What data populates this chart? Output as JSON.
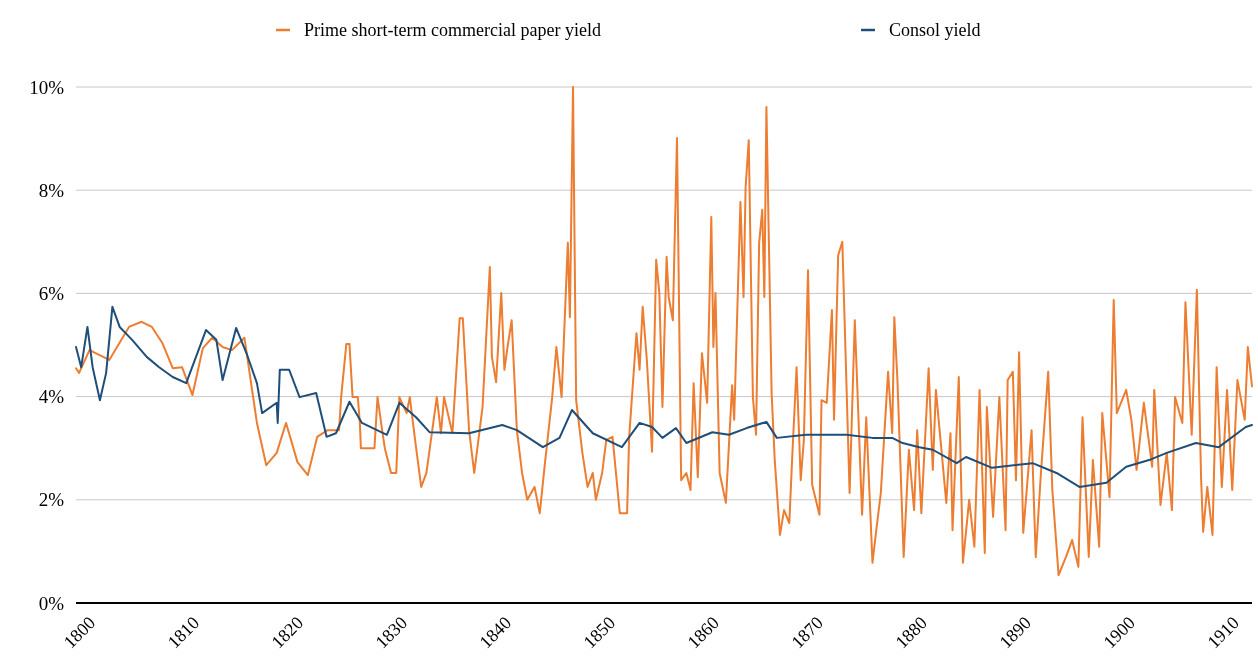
{
  "chart_data": {
    "type": "line",
    "legend": "top",
    "grid": "y",
    "line_style": "solid",
    "marker": "none",
    "xlim": [
      1798.9,
      1912
    ],
    "xticks": [
      1800,
      1810,
      1820,
      1830,
      1840,
      1850,
      1860,
      1870,
      1880,
      1890,
      1900,
      1910
    ],
    "ylim": [
      0,
      10
    ],
    "yticks": [
      {
        "value": 0,
        "label": "0%"
      },
      {
        "value": 2,
        "label": "2%"
      },
      {
        "value": 4,
        "label": "4%"
      },
      {
        "value": 6,
        "label": "6%"
      },
      {
        "value": 8,
        "label": "8%"
      },
      {
        "value": 10,
        "label": "10%"
      }
    ],
    "series": [
      {
        "name": "Prime short-term commercial paper yield",
        "color": "#ed7d31",
        "x": [
          1798.9,
          1799.2,
          1800.2,
          1802.1,
          1804,
          1805.2,
          1806.2,
          1807.2,
          1808.2,
          1809.1,
          1810.1,
          1811.1,
          1812,
          1813,
          1813.9,
          1815.1,
          1816.3,
          1817.2,
          1818.2,
          1819.1,
          1820.2,
          1821.2,
          1822.1,
          1823.1,
          1824.2,
          1824.4,
          1824.9,
          1825.2,
          1825.5,
          1826,
          1826.2,
          1826.3,
          1827.6,
          1827.9,
          1828.3,
          1828.6,
          1829.2,
          1829.7,
          1830,
          1830.7,
          1831,
          1831.6,
          1832.1,
          1832.6,
          1833.6,
          1834,
          1834.3,
          1835.1,
          1835.8,
          1836.1,
          1836.7,
          1837.2,
          1838,
          1838.7,
          1838.9,
          1839.3,
          1839.8,
          1840.1,
          1840.4,
          1840.8,
          1841.3,
          1841.8,
          1842.3,
          1843,
          1843.5,
          1844,
          1844.7,
          1845.1,
          1845.6,
          1846.2,
          1846.4,
          1846.7,
          1847,
          1847.6,
          1848.1,
          1848.6,
          1848.9,
          1849.5,
          1849.9,
          1850.5,
          1851.2,
          1851.9,
          1852.1,
          1852.8,
          1853.1,
          1853.4,
          1853.8,
          1854.3,
          1854.7,
          1855,
          1855.3,
          1855.7,
          1855.9,
          1856.3,
          1856.7,
          1857.1,
          1857.6,
          1858,
          1858.3,
          1858.7,
          1859.1,
          1859.6,
          1860,
          1860.2,
          1860.4,
          1860.8,
          1861.4,
          1862,
          1862.2,
          1862.8,
          1863.1,
          1863.3,
          1863.6,
          1864,
          1864.3,
          1864.6,
          1864.9,
          1865.1,
          1865.3,
          1865.8,
          1866.1,
          1866.6,
          1867,
          1867.5,
          1867.8,
          1868.2,
          1868.6,
          1868.9,
          1869.3,
          1869.7,
          1870.4,
          1870.6,
          1871.1,
          1871.6,
          1871.8,
          1872.2,
          1872.6,
          1873.3,
          1873.8,
          1874.5,
          1874.9,
          1875.5,
          1875.9,
          1876.3,
          1877,
          1877.4,
          1877.6,
          1877.9,
          1878.5,
          1879,
          1879.5,
          1879.8,
          1880.2,
          1880.9,
          1881.3,
          1881.6,
          1882.6,
          1883,
          1883.2,
          1883.8,
          1884.2,
          1884.8,
          1885.3,
          1885.8,
          1886.3,
          1886.5,
          1887.1,
          1887.7,
          1888.3,
          1888.5,
          1889,
          1889.3,
          1889.6,
          1890,
          1890.8,
          1891.2,
          1891.7,
          1892.4,
          1892.8,
          1893.4,
          1894.1,
          1894.7,
          1895.3,
          1895.7,
          1896.3,
          1896.7,
          1897.3,
          1897.6,
          1898.3,
          1898.7,
          1899,
          1899.9,
          1900.4,
          1900.9,
          1901.6,
          1902.4,
          1902.6,
          1903.2,
          1903.8,
          1904.3,
          1904.6,
          1905.3,
          1905.6,
          1906.2,
          1906.7,
          1907.1,
          1907.3,
          1907.7,
          1908.2,
          1908.6,
          1909.1,
          1909.6,
          1910.1,
          1910.6,
          1911.3,
          1911.6,
          1912
        ],
        "values": [
          4.55,
          4.46,
          4.9,
          4.71,
          5.35,
          5.45,
          5.35,
          5.04,
          4.55,
          4.57,
          4.03,
          4.94,
          5.14,
          4.96,
          4.9,
          5.14,
          3.49,
          2.67,
          2.91,
          3.49,
          2.73,
          2.48,
          3.22,
          3.35,
          3.35,
          3.99,
          5.02,
          5.02,
          3.99,
          3.99,
          3.49,
          3,
          3,
          3.99,
          3.41,
          3,
          2.52,
          2.52,
          3.99,
          3.68,
          3.99,
          3.02,
          2.25,
          2.52,
          3.99,
          3.29,
          3.99,
          3.29,
          5.52,
          5.52,
          3.35,
          2.52,
          3.8,
          6.51,
          4.77,
          4.28,
          6.01,
          4.52,
          4.96,
          5.48,
          3.35,
          2.52,
          2,
          2.25,
          1.74,
          2.71,
          3.99,
          4.96,
          3.99,
          6.98,
          5.54,
          10,
          3.93,
          2.91,
          2.25,
          2.52,
          2,
          2.52,
          3.16,
          3.22,
          1.74,
          1.74,
          3.22,
          5.23,
          4.52,
          5.74,
          4.71,
          2.93,
          6.65,
          6.01,
          3.8,
          6.71,
          5.93,
          5.48,
          9.01,
          2.38,
          2.52,
          2.19,
          4.26,
          2.44,
          4.84,
          3.88,
          7.48,
          4.96,
          6.01,
          2.52,
          1.94,
          4.22,
          3.55,
          7.77,
          5.93,
          8.06,
          8.97,
          3.99,
          3.26,
          6.98,
          7.62,
          5.93,
          9.61,
          4.07,
          2.77,
          1.32,
          1.8,
          1.55,
          2.91,
          4.57,
          2.38,
          3.16,
          6.45,
          2.29,
          1.71,
          3.93,
          3.88,
          5.68,
          3.55,
          6.74,
          7,
          2.13,
          5.48,
          1.71,
          3.6,
          0.78,
          1.47,
          2.13,
          4.48,
          3.29,
          5.54,
          4.32,
          0.89,
          2.97,
          1.8,
          3.35,
          1.74,
          4.55,
          2.58,
          4.13,
          1.94,
          3.29,
          1.41,
          4.38,
          0.78,
          2,
          1.09,
          4.13,
          0.97,
          3.8,
          1.67,
          3.99,
          1.41,
          4.32,
          4.48,
          2.38,
          4.86,
          1.36,
          3.35,
          0.89,
          2.52,
          4.48,
          2.19,
          0.54,
          0.89,
          1.22,
          0.7,
          3.6,
          0.89,
          2.77,
          1.09,
          3.68,
          2.05,
          5.87,
          3.68,
          4.13,
          3.55,
          2.58,
          3.88,
          2.64,
          4.13,
          1.9,
          2.91,
          1.8,
          3.99,
          3.49,
          5.83,
          3.26,
          6.07,
          2.44,
          1.38,
          2.25,
          1.32,
          4.57,
          2.25,
          4.13,
          2.19,
          4.32,
          3.55,
          4.96,
          4.2
        ]
      },
      {
        "name": "Consol yield",
        "color": "#1f4e79",
        "x": [
          1798.9,
          1799.4,
          1800,
          1800.5,
          1801.2,
          1801.8,
          1802.4,
          1803.1,
          1804.3,
          1805.7,
          1806.9,
          1808.2,
          1809.5,
          1811.4,
          1812.4,
          1813,
          1814.3,
          1815.3,
          1816.3,
          1816.8,
          1818.2,
          1818.3,
          1818.5,
          1819.4,
          1820.4,
          1822,
          1823,
          1823.9,
          1825.2,
          1826.4,
          1828.8,
          1830,
          1831.6,
          1832.9,
          1836.7,
          1839.9,
          1841.3,
          1843.8,
          1845.4,
          1846.6,
          1848.6,
          1851.4,
          1853.1,
          1854.3,
          1855.3,
          1856.6,
          1857.6,
          1860.1,
          1861.7,
          1863.4,
          1865.3,
          1866.3,
          1869.1,
          1873,
          1875.5,
          1877.4,
          1878.4,
          1880,
          1881.3,
          1883.6,
          1884.5,
          1887,
          1890.9,
          1893.2,
          1895.4,
          1898,
          1899.9,
          1902.1,
          1903.8,
          1906.6,
          1908.8,
          1911.4,
          1912
        ],
        "values": [
          4.96,
          4.57,
          5.35,
          4.57,
          3.93,
          4.46,
          5.74,
          5.35,
          5.1,
          4.77,
          4.57,
          4.38,
          4.26,
          5.29,
          5.1,
          4.32,
          5.33,
          4.84,
          4.26,
          3.68,
          3.88,
          3.49,
          4.52,
          4.52,
          3.99,
          4.07,
          3.22,
          3.29,
          3.9,
          3.49,
          3.26,
          3.88,
          3.6,
          3.31,
          3.29,
          3.45,
          3.35,
          3.02,
          3.2,
          3.74,
          3.29,
          3.02,
          3.49,
          3.41,
          3.2,
          3.39,
          3.1,
          3.31,
          3.26,
          3.39,
          3.51,
          3.2,
          3.26,
          3.26,
          3.2,
          3.2,
          3.1,
          3.02,
          2.97,
          2.71,
          2.83,
          2.62,
          2.71,
          2.52,
          2.25,
          2.33,
          2.64,
          2.77,
          2.91,
          3.1,
          3.02,
          3.41,
          3.45
        ]
      }
    ]
  }
}
